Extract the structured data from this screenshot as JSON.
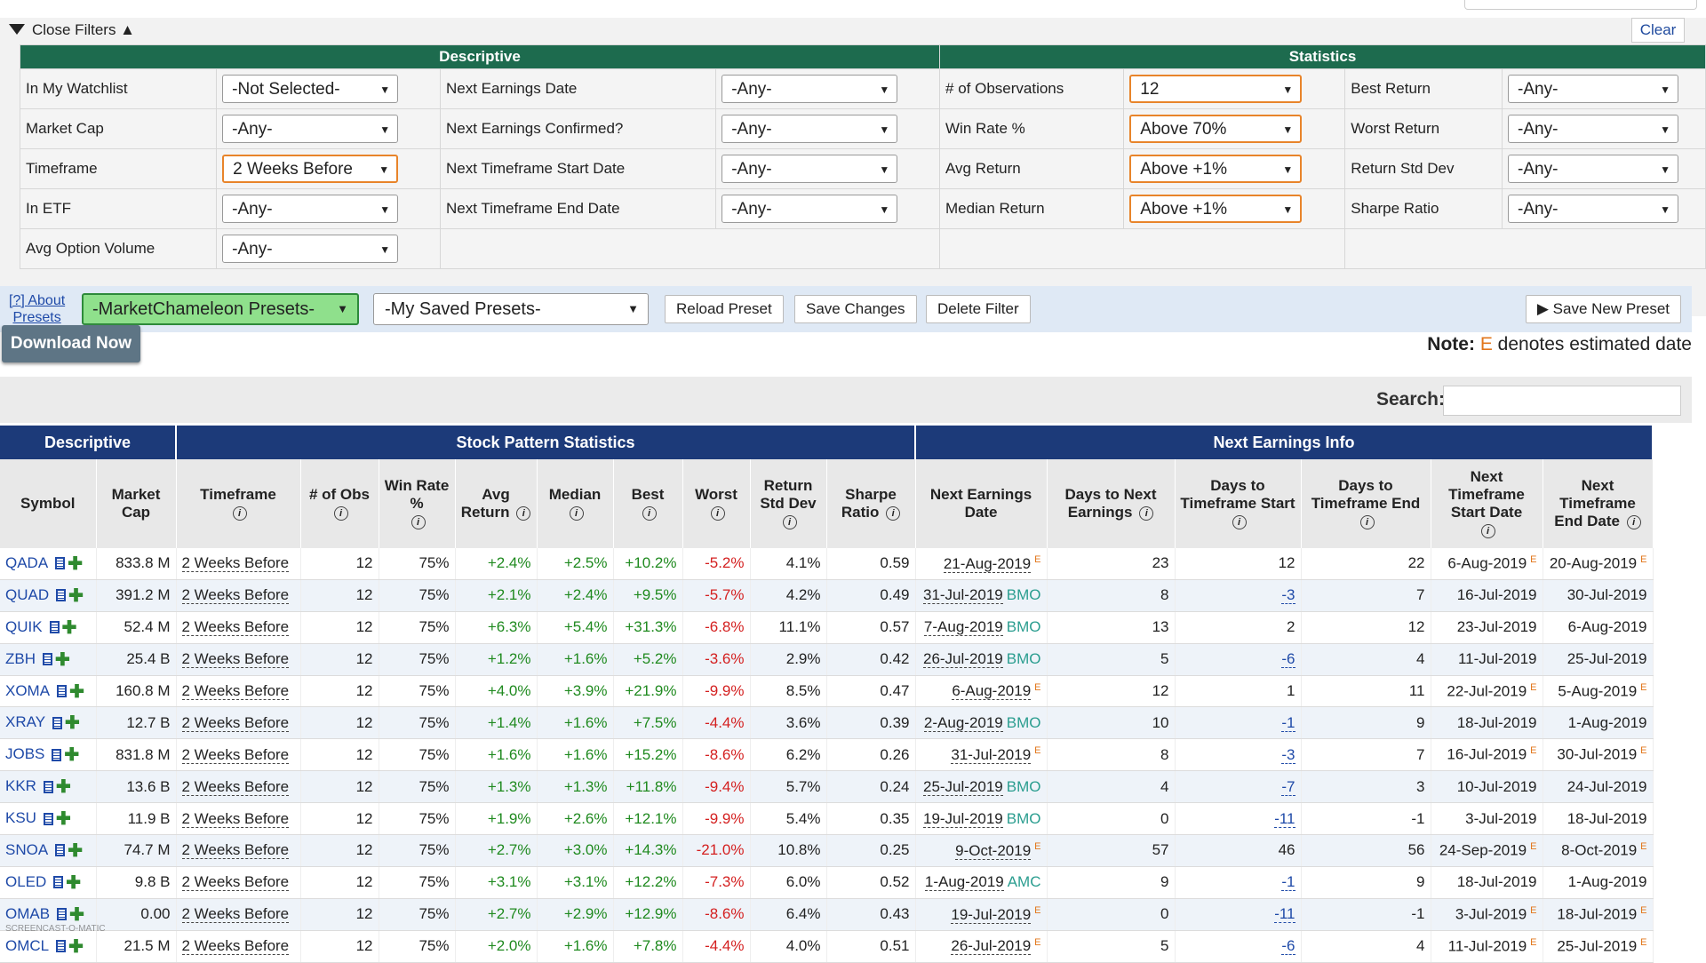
{
  "filters": {
    "close_label": "Close Filters ▲",
    "clear_label": "Clear",
    "descriptive_header": "Descriptive",
    "statistics_header": "Statistics",
    "rows": [
      {
        "l1": "In My Watchlist",
        "v1": "-Not Selected-",
        "l2": "Next Earnings Date",
        "v2": "-Any-",
        "l3": "# of Observations",
        "v3": "12",
        "l4": "Best Return",
        "v4": "-Any-"
      },
      {
        "l1": "Market Cap",
        "v1": "-Any-",
        "l2": "Next Earnings Confirmed?",
        "v2": "-Any-",
        "l3": "Win Rate %",
        "v3": "Above 70%",
        "l4": "Worst Return",
        "v4": "-Any-"
      },
      {
        "l1": "Timeframe",
        "v1": "2 Weeks Before",
        "l2": "Next Timeframe Start Date",
        "v2": "-Any-",
        "l3": "Avg Return",
        "v3": "Above +1%",
        "l4": "Return Std Dev",
        "v4": "-Any-"
      },
      {
        "l1": "In ETF",
        "v1": "-Any-",
        "l2": "Next Timeframe End Date",
        "v2": "-Any-",
        "l3": "Median Return",
        "v3": "Above +1%",
        "l4": "Sharpe Ratio",
        "v4": "-Any-"
      },
      {
        "l1": "Avg Option Volume",
        "v1": "-Any-"
      }
    ]
  },
  "presets": {
    "about_line1": "[?] About",
    "about_line2": "Presets",
    "mc_presets": "-MarketChameleon Presets-",
    "my_presets": "-My Saved Presets-",
    "reload": "Reload Preset",
    "save_changes": "Save Changes",
    "delete": "Delete Filter",
    "save_new": "▶ Save New Preset"
  },
  "download_label": "Download Now",
  "note": {
    "prefix": "Note:",
    "e": "E",
    "suffix": "denotes estimated date"
  },
  "search_label": "Search:",
  "table": {
    "groups": {
      "descriptive": "Descriptive",
      "stats": "Stock Pattern Statistics",
      "earnings": "Next Earnings Info"
    },
    "columns": {
      "symbol": "Symbol",
      "mcap": "Market Cap",
      "timeframe": "Timeframe",
      "obs": "# of Obs",
      "win": "Win Rate %",
      "avg": "Avg Return",
      "median": "Median",
      "best": "Best",
      "worst": "Worst",
      "std": "Return Std Dev",
      "sharpe": "Sharpe Ratio",
      "ned": "Next Earnings Date",
      "dne": "Days to Next Earnings",
      "dts": "Days to Timeframe Start",
      "dte": "Days to Timeframe End",
      "ntsd": "Next Timeframe Start Date",
      "nted": "Next Timeframe End Date"
    },
    "rows": [
      [
        "QADA",
        "833.8 M",
        "2 Weeks Before",
        "12",
        "75%",
        "+2.4%",
        "+2.5%",
        "+10.2%",
        "-5.2%",
        "4.1%",
        "0.59",
        "21-Aug-2019",
        "E",
        "23",
        "12",
        "22",
        "6-Aug-2019",
        "E",
        "20-Aug-2019",
        "E"
      ],
      [
        "QUAD",
        "391.2 M",
        "2 Weeks Before",
        "12",
        "75%",
        "+2.1%",
        "+2.4%",
        "+9.5%",
        "-5.7%",
        "4.2%",
        "0.49",
        "31-Jul-2019",
        "BMO",
        "8",
        "-3",
        "7",
        "16-Jul-2019",
        "",
        "30-Jul-2019",
        ""
      ],
      [
        "QUIK",
        "52.4 M",
        "2 Weeks Before",
        "12",
        "75%",
        "+6.3%",
        "+5.4%",
        "+31.3%",
        "-6.8%",
        "11.1%",
        "0.57",
        "7-Aug-2019",
        "BMO",
        "13",
        "2",
        "12",
        "23-Jul-2019",
        "",
        "6-Aug-2019",
        ""
      ],
      [
        "ZBH",
        "25.4 B",
        "2 Weeks Before",
        "12",
        "75%",
        "+1.2%",
        "+1.6%",
        "+5.2%",
        "-3.6%",
        "2.9%",
        "0.42",
        "26-Jul-2019",
        "BMO",
        "5",
        "-6",
        "4",
        "11-Jul-2019",
        "",
        "25-Jul-2019",
        ""
      ],
      [
        "XOMA",
        "160.8 M",
        "2 Weeks Before",
        "12",
        "75%",
        "+4.0%",
        "+3.9%",
        "+21.9%",
        "-9.9%",
        "8.5%",
        "0.47",
        "6-Aug-2019",
        "E",
        "12",
        "1",
        "11",
        "22-Jul-2019",
        "E",
        "5-Aug-2019",
        "E"
      ],
      [
        "XRAY",
        "12.7 B",
        "2 Weeks Before",
        "12",
        "75%",
        "+1.4%",
        "+1.6%",
        "+7.5%",
        "-4.4%",
        "3.6%",
        "0.39",
        "2-Aug-2019",
        "BMO",
        "10",
        "-1",
        "9",
        "18-Jul-2019",
        "",
        "1-Aug-2019",
        ""
      ],
      [
        "JOBS",
        "831.8 M",
        "2 Weeks Before",
        "12",
        "75%",
        "+1.6%",
        "+1.6%",
        "+15.2%",
        "-8.6%",
        "6.2%",
        "0.26",
        "31-Jul-2019",
        "E",
        "8",
        "-3",
        "7",
        "16-Jul-2019",
        "E",
        "30-Jul-2019",
        "E"
      ],
      [
        "KKR",
        "13.6 B",
        "2 Weeks Before",
        "12",
        "75%",
        "+1.3%",
        "+1.3%",
        "+11.8%",
        "-9.4%",
        "5.7%",
        "0.24",
        "25-Jul-2019",
        "BMO",
        "4",
        "-7",
        "3",
        "10-Jul-2019",
        "",
        "24-Jul-2019",
        ""
      ],
      [
        "KSU",
        "11.9 B",
        "2 Weeks Before",
        "12",
        "75%",
        "+1.9%",
        "+2.6%",
        "+12.1%",
        "-9.9%",
        "5.4%",
        "0.35",
        "19-Jul-2019",
        "BMO",
        "0",
        "-11",
        "-1",
        "3-Jul-2019",
        "",
        "18-Jul-2019",
        ""
      ],
      [
        "SNOA",
        "74.7 M",
        "2 Weeks Before",
        "12",
        "75%",
        "+2.7%",
        "+3.0%",
        "+14.3%",
        "-21.0%",
        "10.8%",
        "0.25",
        "9-Oct-2019",
        "E",
        "57",
        "46",
        "56",
        "24-Sep-2019",
        "E",
        "8-Oct-2019",
        "E"
      ],
      [
        "OLED",
        "9.8 B",
        "2 Weeks Before",
        "12",
        "75%",
        "+3.1%",
        "+3.1%",
        "+12.2%",
        "-7.3%",
        "6.0%",
        "0.52",
        "1-Aug-2019",
        "AMC",
        "9",
        "-1",
        "9",
        "18-Jul-2019",
        "",
        "1-Aug-2019",
        ""
      ],
      [
        "OMAB",
        "0.00",
        "2 Weeks Before",
        "12",
        "75%",
        "+2.7%",
        "+2.9%",
        "+12.9%",
        "-8.6%",
        "6.4%",
        "0.43",
        "19-Jul-2019",
        "E",
        "0",
        "-11",
        "-1",
        "3-Jul-2019",
        "E",
        "18-Jul-2019",
        "E"
      ],
      [
        "OMCL",
        "21.5 M",
        "2 Weeks Before",
        "12",
        "75%",
        "+2.0%",
        "+1.6%",
        "+7.8%",
        "-4.4%",
        "4.0%",
        "0.51",
        "26-Jul-2019",
        "E",
        "5",
        "-6",
        "4",
        "11-Jul-2019",
        "E",
        "25-Jul-2019",
        "E"
      ]
    ]
  },
  "watermark": "SCREENCAST-O-MATIC"
}
